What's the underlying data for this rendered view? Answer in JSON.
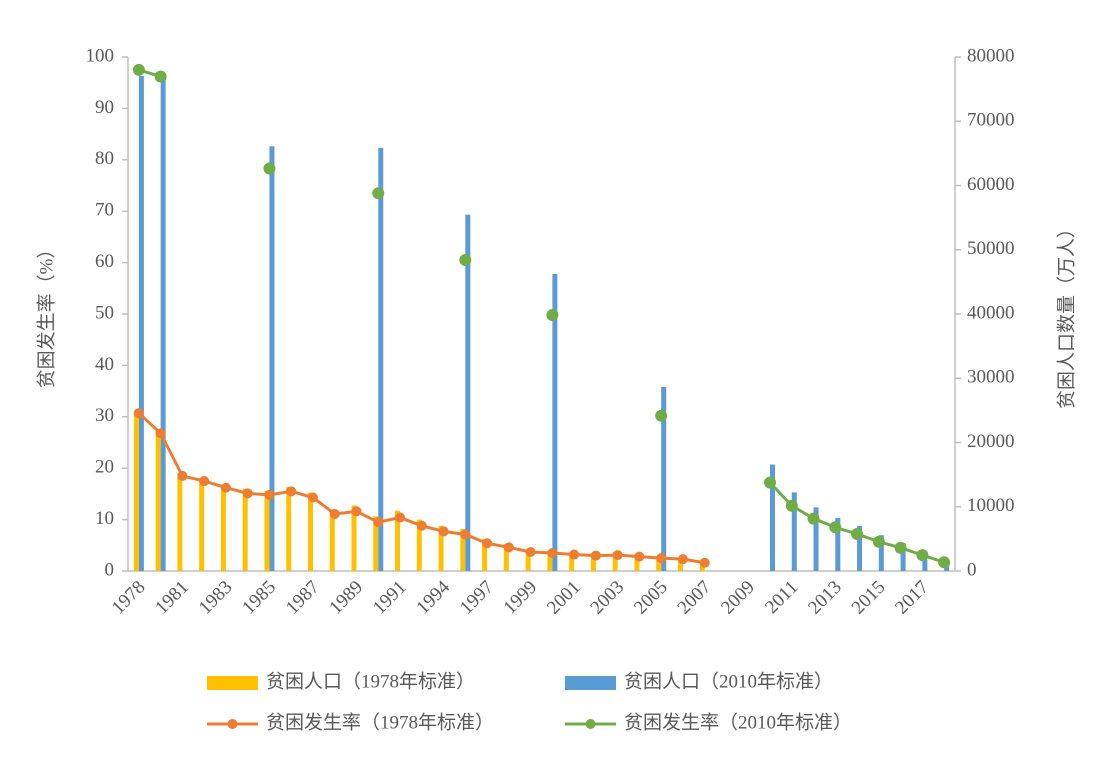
{
  "chart_data": {
    "type": "bar",
    "categories": [
      "1978",
      null,
      "1981",
      null,
      "1983",
      null,
      "1985",
      null,
      "1987",
      null,
      "1989",
      null,
      "1991",
      null,
      "1994",
      null,
      "1997",
      null,
      "1999",
      null,
      "2001",
      null,
      "2003",
      null,
      "2005",
      null,
      "2007",
      null,
      "2009",
      null,
      "2011",
      null,
      "2013",
      null,
      "2015",
      null,
      "2017",
      null
    ],
    "series": [
      {
        "name": "贫困人口（1978年标准）",
        "type": "bar",
        "axis": "y2",
        "color": "#ffc000",
        "values": [
          25000,
          22000,
          15200,
          14500,
          13500,
          12800,
          12500,
          13100,
          12200,
          9600,
          10200,
          8500,
          9400,
          8000,
          7000,
          6540,
          4962,
          4210,
          3412,
          3209,
          2927,
          2820,
          2900,
          2610,
          2365,
          2148,
          1479,
          null,
          null,
          null,
          null,
          null,
          null,
          null,
          null,
          null,
          null,
          null
        ]
      },
      {
        "name": "贫困人口（2010年标准）",
        "type": "bar",
        "axis": "y2",
        "color": "#5b9bd5",
        "values": [
          77039,
          76542,
          null,
          null,
          null,
          null,
          66101,
          null,
          null,
          null,
          null,
          65849,
          null,
          null,
          null,
          55463,
          null,
          null,
          null,
          46224,
          null,
          null,
          null,
          null,
          28662,
          null,
          null,
          null,
          null,
          16567,
          12238,
          9899,
          8249,
          7017,
          5575,
          4335,
          3046,
          1660
        ]
      },
      {
        "name": "贫困发生率（1978年标准）",
        "type": "line",
        "axis": "y",
        "color": "#ed7d31",
        "values": [
          30.7,
          26.8,
          18.5,
          17.5,
          16.2,
          15.1,
          14.8,
          15.5,
          14.3,
          11.1,
          11.6,
          9.5,
          10.4,
          8.8,
          7.7,
          7.1,
          5.4,
          4.6,
          3.7,
          3.5,
          3.2,
          3.0,
          3.1,
          2.8,
          2.5,
          2.3,
          1.6,
          null,
          null,
          null,
          null,
          null,
          null,
          null,
          null,
          null,
          null,
          null
        ]
      },
      {
        "name": "贫困发生率（2010年标准）",
        "type": "line",
        "axis": "y",
        "color": "#70ad47",
        "values": [
          97.5,
          96.2,
          null,
          null,
          null,
          null,
          78.3,
          null,
          null,
          null,
          null,
          73.5,
          null,
          null,
          null,
          60.5,
          null,
          null,
          null,
          49.8,
          null,
          null,
          null,
          null,
          30.2,
          null,
          null,
          null,
          null,
          17.2,
          12.7,
          10.2,
          8.5,
          7.2,
          5.7,
          4.5,
          3.1,
          1.7
        ]
      }
    ],
    "ylabel": "贫困发生率（%）",
    "y2label": "贫困人口数量（万人）",
    "ylim": [
      0,
      100
    ],
    "yticks": [
      0,
      10,
      20,
      30,
      40,
      50,
      60,
      70,
      80,
      90,
      100
    ],
    "y2lim": [
      0,
      80000
    ],
    "y2ticks": [
      0,
      10000,
      20000,
      30000,
      40000,
      50000,
      60000,
      70000,
      80000
    ],
    "grid": false,
    "legend": "bottom"
  }
}
